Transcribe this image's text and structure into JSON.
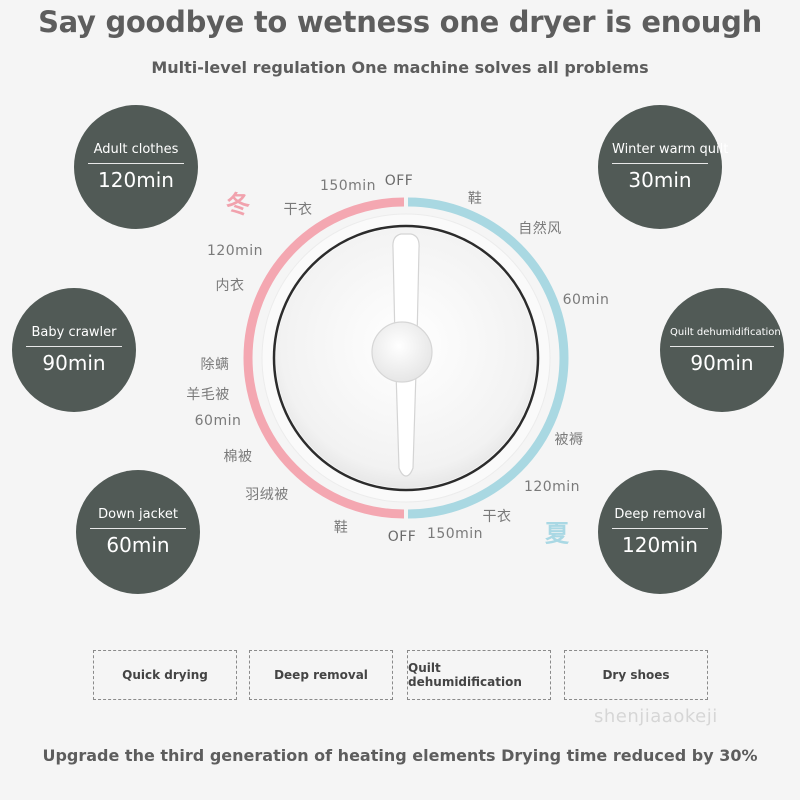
{
  "header": {
    "title": "Say goodbye to wetness one dryer is enough",
    "subtitle": "Multi-level regulation One machine solves all problems"
  },
  "badges": [
    {
      "mode": "Adult clothes",
      "time": "120min"
    },
    {
      "mode": "Baby crawler",
      "time": "90min"
    },
    {
      "mode": "Down jacket",
      "time": "60min"
    },
    {
      "mode": "Winter warm quilt",
      "time": "30min"
    },
    {
      "mode": "Quilt dehumidification",
      "time": "90min"
    },
    {
      "mode": "Deep removal",
      "time": "120min"
    }
  ],
  "dial": {
    "winter_label": "冬",
    "summer_label": "夏",
    "left_labels": [
      "150min",
      "干衣",
      "120min",
      "内衣",
      "除螨",
      "羊毛被",
      "60min",
      "棉被",
      "羽绒被",
      "鞋"
    ],
    "right_labels": [
      "鞋",
      "自然风",
      "60min",
      "被褥",
      "120min",
      "干衣",
      "150min"
    ],
    "top_off": "OFF",
    "bottom_off": "OFF",
    "colors": {
      "winter": "#f4a7b1",
      "summer": "#a9d8e2"
    }
  },
  "features": [
    "Quick drying",
    "Deep removal",
    "Quilt dehumidification",
    "Dry shoes"
  ],
  "watermark": "shenjiaaokeji",
  "footer": "Upgrade the third generation of heating elements Drying time reduced by 30%"
}
